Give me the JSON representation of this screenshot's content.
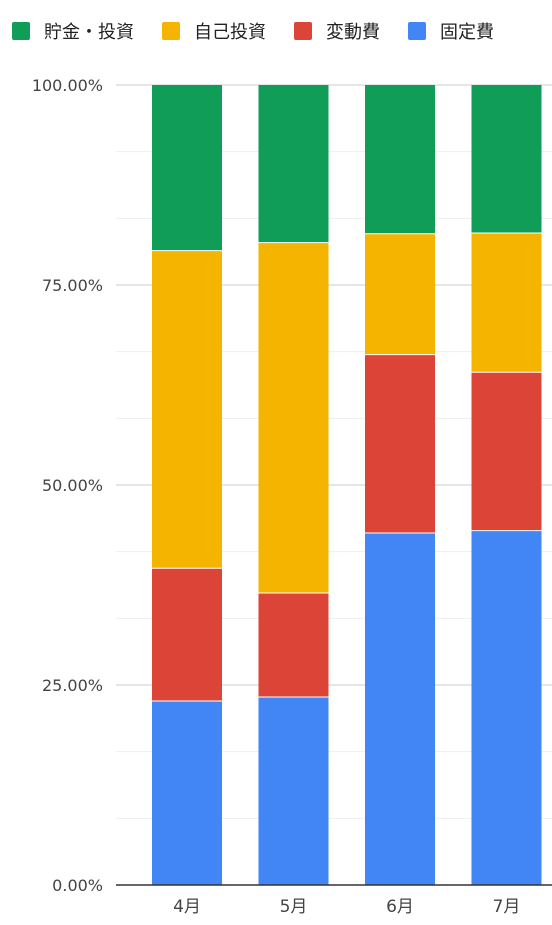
{
  "chart_data": {
    "type": "bar",
    "stacked": true,
    "percent": true,
    "categories": [
      "4月",
      "5月",
      "6月",
      "7月"
    ],
    "series": [
      {
        "name": "固定費",
        "color": "#4285F4",
        "values": [
          23.0,
          23.5,
          44.0,
          44.3
        ]
      },
      {
        "name": "変動費",
        "color": "#DB4437",
        "values": [
          16.6,
          13.0,
          22.3,
          19.8
        ]
      },
      {
        "name": "自己投資",
        "color": "#F4B400",
        "values": [
          39.7,
          43.8,
          15.1,
          17.4
        ]
      },
      {
        "name": "貯金・投資",
        "color": "#0F9D58",
        "values": [
          20.7,
          19.7,
          18.6,
          18.5
        ]
      }
    ],
    "legend_order": [
      "貯金・投資",
      "自己投資",
      "変動費",
      "固定費"
    ],
    "legend_position": "top",
    "ylim": [
      0,
      100
    ],
    "y_ticks": [
      {
        "value": 0,
        "label": "0.00%"
      },
      {
        "value": 25,
        "label": "25.00%"
      },
      {
        "value": 50,
        "label": "50.00%"
      },
      {
        "value": 75,
        "label": "75.00%"
      },
      {
        "value": 100,
        "label": "100.00%"
      }
    ],
    "minor_gridlines": true,
    "title": "",
    "xlabel": "",
    "ylabel": ""
  }
}
